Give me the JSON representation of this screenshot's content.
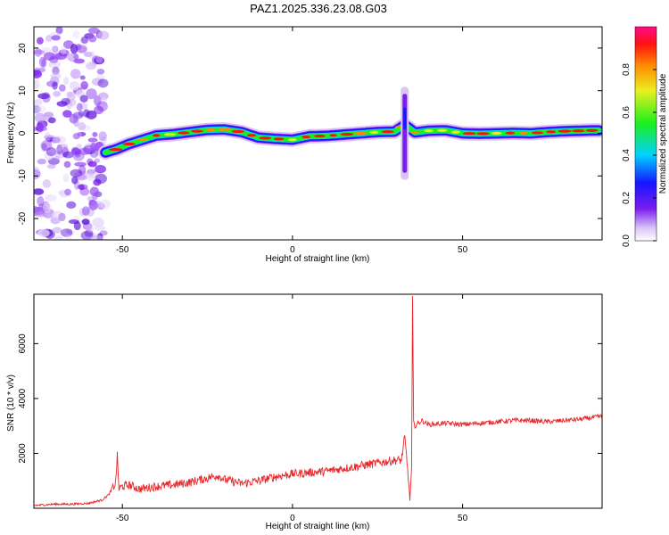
{
  "title": "PAZ1.2025.336.23.08.G03",
  "colors": {
    "snr_line": "#e8262a",
    "background": "#ffffff",
    "axes": "#000000"
  },
  "chart_data": [
    {
      "type": "heatmap",
      "xlabel": "Height of straight line (km)",
      "ylabel": "Frequency (Hz)",
      "xlim": [
        -76,
        91
      ],
      "ylim": [
        -25,
        25
      ],
      "xticks": [
        -50,
        0,
        50
      ],
      "yticks": [
        -20,
        -10,
        0,
        10,
        20
      ],
      "colorbar": {
        "label": "Normalized spectral amplitude",
        "range": [
          0.0,
          1.0
        ],
        "ticks": [
          "0.0",
          "0.2",
          "0.4",
          "0.6",
          "0.8"
        ],
        "tick_values": [
          0.0,
          0.2,
          0.4,
          0.6,
          0.8
        ],
        "colormap": "rainbow (white at 0, purple, blue, cyan, green, yellow, orange, red, magenta at 1)"
      },
      "ridge": {
        "description": "dominant frequency track vs height",
        "x": [
          -55,
          -52,
          -48,
          -44,
          -40,
          -35,
          -30,
          -25,
          -20,
          -15,
          -10,
          -5,
          0,
          5,
          10,
          15,
          20,
          25,
          30,
          33,
          36,
          40,
          45,
          50,
          55,
          60,
          65,
          70,
          75,
          80,
          85,
          90
        ],
        "y": [
          -4.5,
          -3.8,
          -2.5,
          -1.5,
          -0.5,
          -0.2,
          0.3,
          0.8,
          0.9,
          0.3,
          -1.0,
          -1.3,
          -1.5,
          -0.7,
          -0.6,
          -0.3,
          0.0,
          0.3,
          0.4,
          2.0,
          0.2,
          0.6,
          0.7,
          0.0,
          -0.1,
          0.0,
          0.1,
          0.0,
          0.3,
          0.5,
          0.6,
          0.7
        ]
      },
      "noise_region": {
        "x_range": [
          -76,
          -55
        ],
        "y_range": [
          -25,
          25
        ]
      },
      "spike": {
        "x": 33,
        "y_range": [
          -10,
          10
        ]
      }
    },
    {
      "type": "line",
      "xlabel": "Height of straight line (km)",
      "ylabel": "SNR (10 * v/v)",
      "xlim": [
        -76,
        91
      ],
      "ylim": [
        0,
        7800
      ],
      "xticks": [
        -50,
        0,
        50
      ],
      "yticks": [
        2000,
        4000,
        6000
      ],
      "series": [
        {
          "x": [
            -76,
            -70,
            -65,
            -60,
            -56,
            -54,
            -52,
            -51.5,
            -51,
            -50,
            -48,
            -45,
            -40,
            -35,
            -30,
            -25,
            -22,
            -20,
            -15,
            -10,
            -5,
            0,
            5,
            10,
            15,
            20,
            25,
            30,
            32,
            33,
            34,
            34.5,
            35,
            35.3,
            35.6,
            36,
            38,
            40,
            45,
            50,
            55,
            60,
            65,
            70,
            75,
            80,
            85,
            88,
            91
          ],
          "y": [
            100,
            150,
            150,
            180,
            300,
            500,
            900,
            1900,
            700,
            800,
            850,
            700,
            800,
            850,
            950,
            1100,
            1200,
            1050,
            900,
            1000,
            1150,
            1250,
            1300,
            1350,
            1450,
            1550,
            1650,
            1750,
            1750,
            2600,
            1200,
            300,
            1400,
            7700,
            3100,
            3000,
            3200,
            3050,
            3100,
            3050,
            3100,
            3150,
            3200,
            3200,
            3150,
            3200,
            3250,
            3300,
            3350
          ]
        }
      ]
    }
  ]
}
